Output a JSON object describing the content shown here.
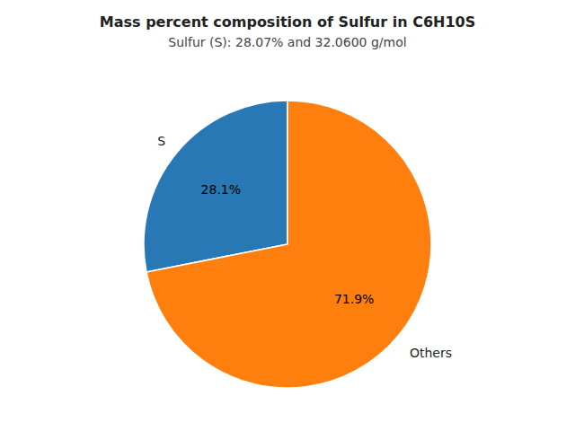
{
  "chart_data": {
    "type": "pie",
    "title": "Mass percent composition of Sulfur in C6H10S",
    "subtitle": "Sulfur (S): 28.07% and 32.0600 g/mol",
    "categories": [
      "S",
      "Others"
    ],
    "values": [
      28.1,
      71.9
    ],
    "value_labels": [
      "28.1%",
      "71.9%"
    ],
    "colors": [
      "#2878b5",
      "#ff7f0e"
    ],
    "data_labels": true
  }
}
